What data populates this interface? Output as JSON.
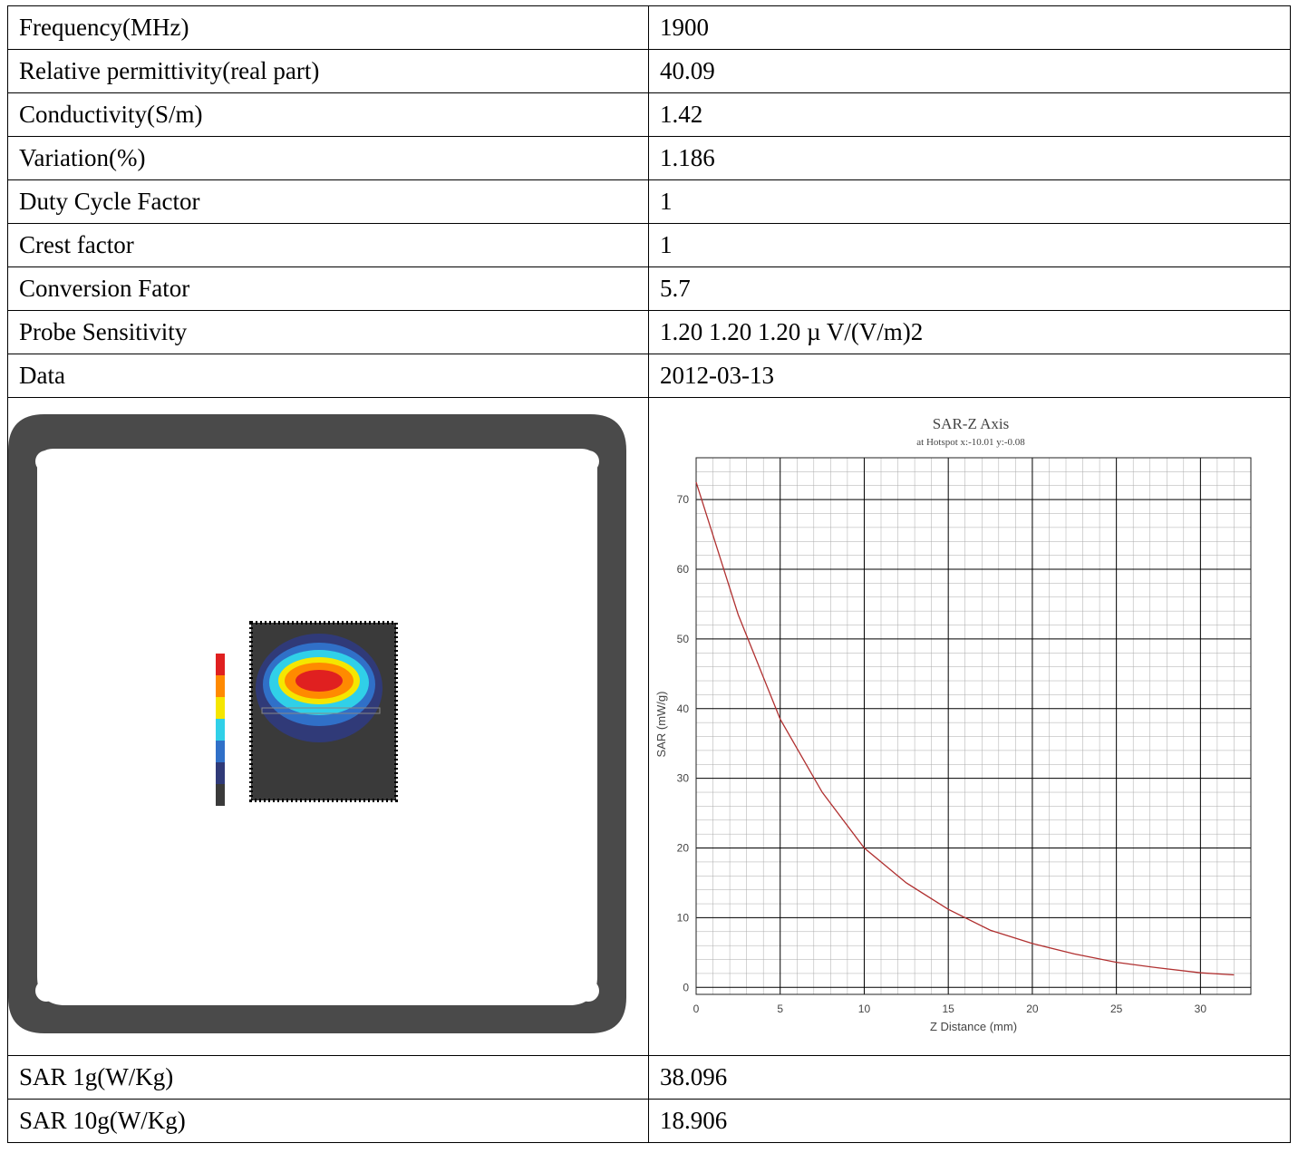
{
  "rows": [
    {
      "label": "Frequency(MHz)",
      "value": "1900"
    },
    {
      "label": "Relative permittivity(real part)",
      "value": "40.09"
    },
    {
      "label": "Conductivity(S/m)",
      "value": "1.42"
    },
    {
      "label": "Variation(%)",
      "value": "1.186"
    },
    {
      "label": "Duty Cycle Factor",
      "value": "1"
    },
    {
      "label": "Crest factor",
      "value": "1"
    },
    {
      "label": "Conversion Fator",
      "value": "5.7"
    },
    {
      "label": "Probe Sensitivity",
      "value": "1.20 1.20 1.20 µ V/(V/m)2"
    },
    {
      "label": "Data",
      "value": "2012-03-13"
    }
  ],
  "bottom_rows": [
    {
      "label": "SAR 1g(W/Kg)",
      "value": "38.096"
    },
    {
      "label": "SAR 10g(W/Kg)",
      "value": "18.906"
    }
  ],
  "colors": {
    "phantom_frame": "#4a4a4a",
    "curve": "#b03030",
    "grid_major": "#000000",
    "grid_minor": "#aaaaaa",
    "scale": [
      "#e02020",
      "#ff8a00",
      "#f5e600",
      "#30d0e8",
      "#3070c8",
      "#303a78",
      "#3a3a3a"
    ]
  },
  "chart_data": {
    "type": "line",
    "title": "SAR-Z Axis",
    "subtitle": "at Hotspot x:-10.01 y:-0.08",
    "xlabel": "Z Distance (mm)",
    "ylabel": "SAR (mW/g)",
    "xlim": [
      0,
      33
    ],
    "ylim": [
      -1,
      76
    ],
    "xticks": [
      0,
      5,
      10,
      15,
      20,
      25,
      30
    ],
    "yticks": [
      0,
      10,
      20,
      30,
      40,
      50,
      60,
      70
    ],
    "grid": true,
    "series": [
      {
        "x": [
          0,
          2.5,
          5,
          7.5,
          10,
          12.5,
          15,
          17.5,
          20,
          22.5,
          25,
          27.5,
          30,
          32
        ],
        "values": [
          72.5,
          53.5,
          38.5,
          28,
          20,
          15,
          11.2,
          8.2,
          6.3,
          4.8,
          3.6,
          2.8,
          2.1,
          1.8
        ]
      }
    ]
  }
}
